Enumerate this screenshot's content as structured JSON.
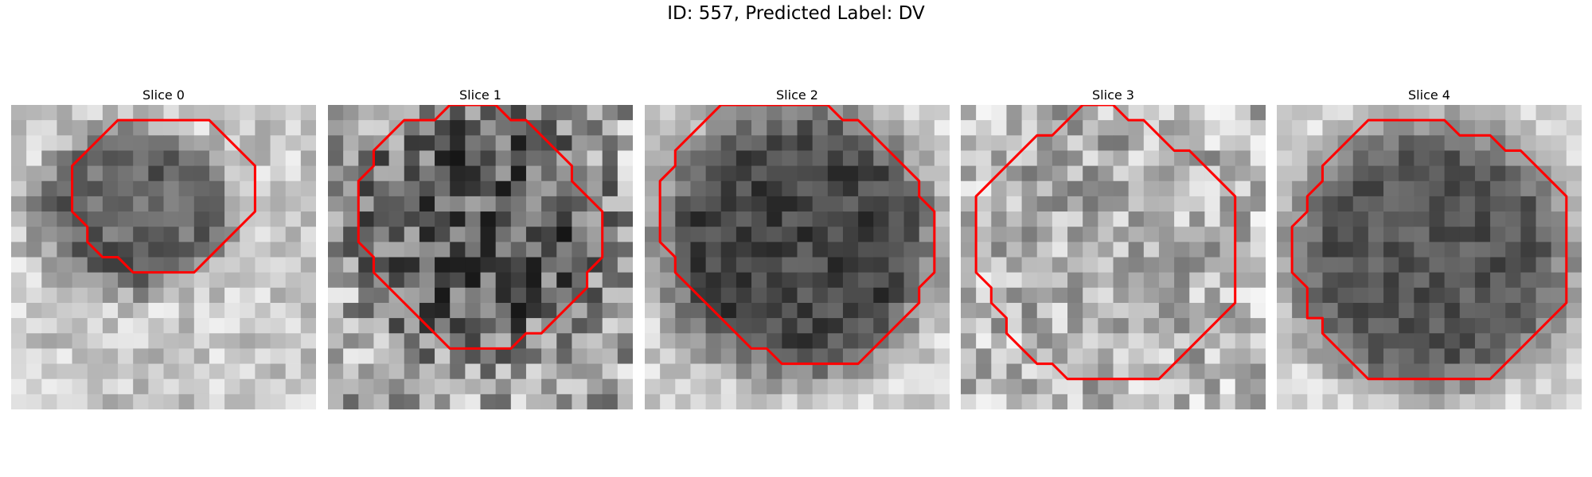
{
  "figure": {
    "title": "ID: 557, Predicted Label: DV"
  },
  "colors": {
    "contour": "#ff0000",
    "background": "#ffffff"
  },
  "slices": [
    {
      "title": "Slice 0",
      "contour": [
        [
          10,
          1
        ],
        [
          13,
          1
        ],
        [
          14,
          2
        ],
        [
          15,
          3
        ],
        [
          16,
          4
        ],
        [
          16,
          5
        ],
        [
          16,
          6
        ],
        [
          16,
          7
        ],
        [
          15,
          8
        ],
        [
          14,
          9
        ],
        [
          13,
          10
        ],
        [
          12,
          11
        ],
        [
          11,
          11
        ],
        [
          9,
          11
        ],
        [
          8,
          11
        ],
        [
          7,
          10
        ],
        [
          6,
          10
        ],
        [
          5,
          9
        ],
        [
          5,
          8
        ],
        [
          4,
          7
        ],
        [
          4,
          6
        ],
        [
          4,
          5
        ],
        [
          4,
          4
        ],
        [
          5,
          3
        ],
        [
          6,
          2
        ],
        [
          7,
          1
        ]
      ]
    },
    {
      "title": "Slice 1",
      "contour": [
        [
          8,
          0
        ],
        [
          11,
          0
        ],
        [
          12,
          1
        ],
        [
          13,
          1
        ],
        [
          14,
          2
        ],
        [
          15,
          3
        ],
        [
          16,
          4
        ],
        [
          16,
          5
        ],
        [
          17,
          6
        ],
        [
          18,
          7
        ],
        [
          18,
          8
        ],
        [
          18,
          9
        ],
        [
          18,
          10
        ],
        [
          17,
          11
        ],
        [
          17,
          12
        ],
        [
          16,
          13
        ],
        [
          15,
          14
        ],
        [
          14,
          15
        ],
        [
          13,
          15
        ],
        [
          12,
          16
        ],
        [
          10,
          16
        ],
        [
          8,
          16
        ],
        [
          7,
          15
        ],
        [
          6,
          14
        ],
        [
          5,
          13
        ],
        [
          4,
          12
        ],
        [
          3,
          11
        ],
        [
          3,
          10
        ],
        [
          2,
          9
        ],
        [
          2,
          8
        ],
        [
          2,
          7
        ],
        [
          2,
          6
        ],
        [
          2,
          5
        ],
        [
          3,
          4
        ],
        [
          3,
          3
        ],
        [
          4,
          2
        ],
        [
          5,
          1
        ],
        [
          6,
          1
        ],
        [
          7,
          1
        ]
      ]
    },
    {
      "title": "Slice 2",
      "contour": [
        [
          5,
          0
        ],
        [
          12,
          0
        ],
        [
          13,
          1
        ],
        [
          14,
          1
        ],
        [
          15,
          2
        ],
        [
          16,
          3
        ],
        [
          17,
          4
        ],
        [
          18,
          5
        ],
        [
          18,
          6
        ],
        [
          19,
          7
        ],
        [
          19,
          8
        ],
        [
          19,
          9
        ],
        [
          19,
          10
        ],
        [
          19,
          11
        ],
        [
          18,
          12
        ],
        [
          18,
          13
        ],
        [
          17,
          14
        ],
        [
          16,
          15
        ],
        [
          15,
          16
        ],
        [
          14,
          17
        ],
        [
          13,
          17
        ],
        [
          12,
          17
        ],
        [
          9,
          17
        ],
        [
          8,
          16
        ],
        [
          7,
          16
        ],
        [
          6,
          15
        ],
        [
          5,
          14
        ],
        [
          4,
          13
        ],
        [
          3,
          12
        ],
        [
          2,
          11
        ],
        [
          2,
          10
        ],
        [
          1,
          9
        ],
        [
          1,
          8
        ],
        [
          1,
          7
        ],
        [
          1,
          6
        ],
        [
          1,
          5
        ],
        [
          2,
          4
        ],
        [
          2,
          3
        ],
        [
          3,
          2
        ],
        [
          4,
          1
        ]
      ]
    },
    {
      "title": "Slice 3",
      "contour": [
        [
          8,
          0
        ],
        [
          10,
          0
        ],
        [
          11,
          1
        ],
        [
          12,
          1
        ],
        [
          13,
          2
        ],
        [
          14,
          3
        ],
        [
          15,
          3
        ],
        [
          16,
          4
        ],
        [
          17,
          5
        ],
        [
          18,
          6
        ],
        [
          18,
          7
        ],
        [
          18,
          8
        ],
        [
          18,
          9
        ],
        [
          18,
          10
        ],
        [
          18,
          11
        ],
        [
          18,
          12
        ],
        [
          18,
          13
        ],
        [
          17,
          14
        ],
        [
          16,
          15
        ],
        [
          15,
          16
        ],
        [
          14,
          17
        ],
        [
          13,
          18
        ],
        [
          12,
          18
        ],
        [
          7,
          18
        ],
        [
          6,
          17
        ],
        [
          5,
          17
        ],
        [
          4,
          16
        ],
        [
          3,
          15
        ],
        [
          3,
          14
        ],
        [
          2,
          13
        ],
        [
          2,
          12
        ],
        [
          1,
          11
        ],
        [
          1,
          10
        ],
        [
          1,
          9
        ],
        [
          1,
          8
        ],
        [
          1,
          7
        ],
        [
          1,
          6
        ],
        [
          2,
          5
        ],
        [
          3,
          4
        ],
        [
          4,
          3
        ],
        [
          5,
          2
        ],
        [
          6,
          2
        ],
        [
          7,
          1
        ]
      ]
    },
    {
      "title": "Slice 4",
      "contour": [
        [
          6,
          1
        ],
        [
          11,
          1
        ],
        [
          12,
          2
        ],
        [
          14,
          2
        ],
        [
          15,
          3
        ],
        [
          16,
          3
        ],
        [
          17,
          4
        ],
        [
          18,
          5
        ],
        [
          19,
          6
        ],
        [
          19,
          7
        ],
        [
          19,
          8
        ],
        [
          19,
          9
        ],
        [
          19,
          10
        ],
        [
          19,
          11
        ],
        [
          19,
          12
        ],
        [
          19,
          13
        ],
        [
          18,
          14
        ],
        [
          17,
          15
        ],
        [
          16,
          16
        ],
        [
          15,
          17
        ],
        [
          14,
          18
        ],
        [
          13,
          18
        ],
        [
          7,
          18
        ],
        [
          6,
          18
        ],
        [
          5,
          17
        ],
        [
          4,
          16
        ],
        [
          3,
          15
        ],
        [
          3,
          14
        ],
        [
          2,
          14
        ],
        [
          2,
          13
        ],
        [
          2,
          12
        ],
        [
          1,
          11
        ],
        [
          1,
          10
        ],
        [
          1,
          9
        ],
        [
          1,
          8
        ],
        [
          2,
          7
        ],
        [
          2,
          6
        ],
        [
          3,
          5
        ],
        [
          3,
          4
        ],
        [
          4,
          3
        ],
        [
          5,
          2
        ]
      ]
    }
  ]
}
